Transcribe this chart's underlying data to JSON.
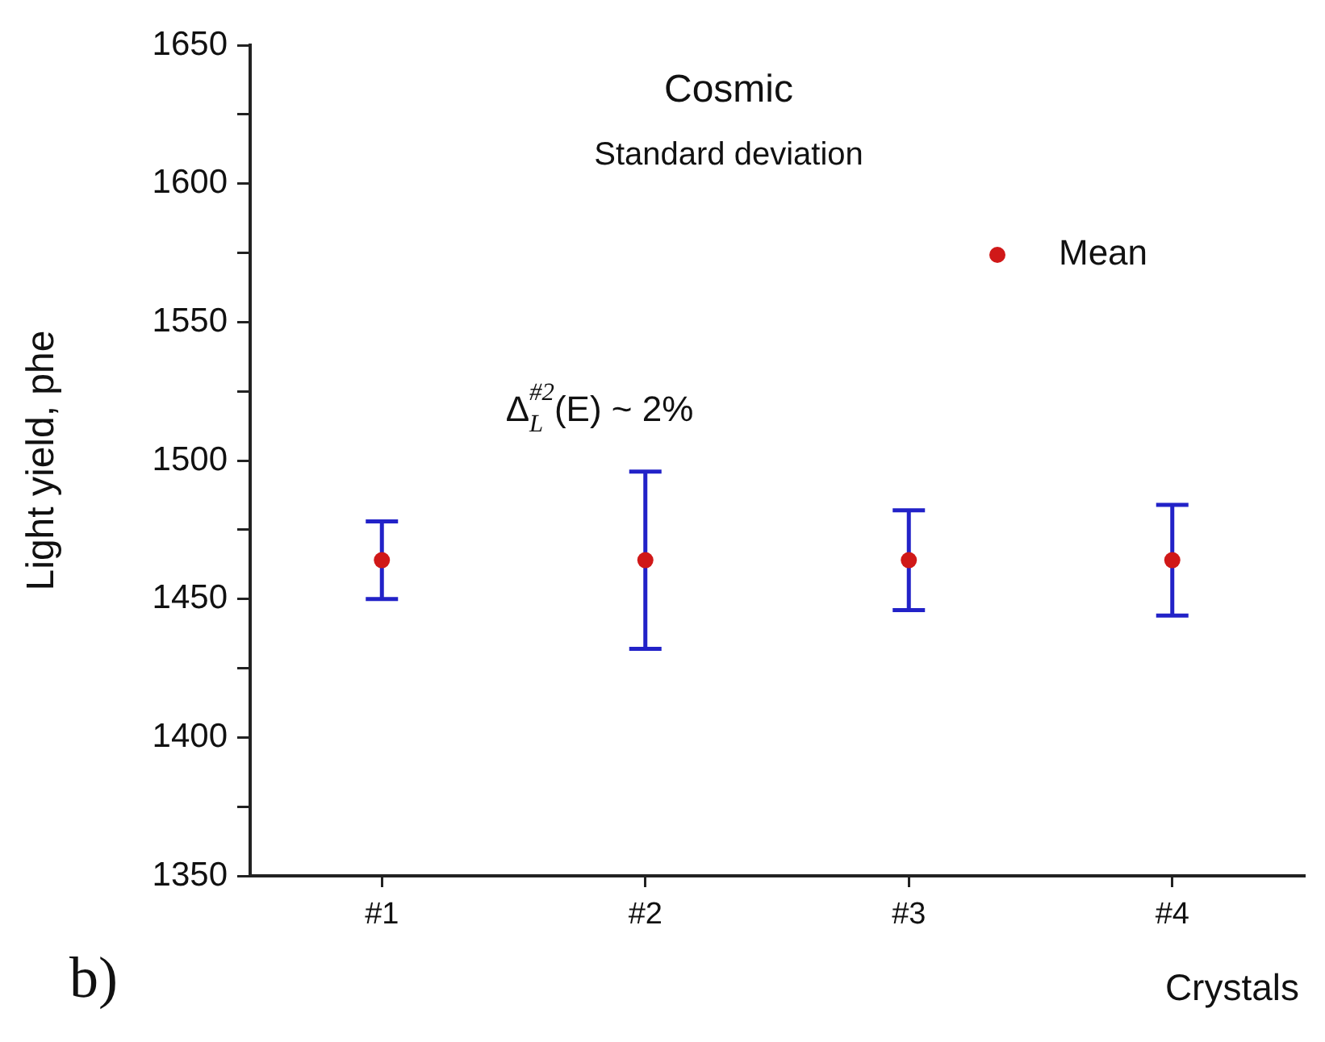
{
  "chart_data": {
    "type": "scatter",
    "title": "Cosmic",
    "subtitle": "Standard deviation",
    "xlabel": "Crystals",
    "ylabel": "Light yield, phe",
    "categories": [
      "#1",
      "#2",
      "#3",
      "#4"
    ],
    "series": [
      {
        "name": "Mean",
        "color": "#d01818",
        "values": [
          1464,
          1464,
          1464,
          1464
        ],
        "errors": [
          14,
          32,
          18,
          20
        ]
      }
    ],
    "ylim": [
      1350,
      1650
    ],
    "yticks": [
      1350,
      {
        "value": 1375,
        "label": null
      },
      1400,
      {
        "value": 1425,
        "label": null
      },
      1450,
      {
        "value": 1475,
        "label": null
      },
      1500,
      {
        "value": 1525,
        "label": null
      },
      1550,
      {
        "value": 1575,
        "label": null
      },
      1600,
      {
        "value": 1625,
        "label": null
      },
      1650
    ],
    "annotations": [
      "Δ$_{L}$$^{#2}$(E) ~ 2%",
      "b)"
    ],
    "marker": "circle",
    "legend": "top right",
    "grid": false
  }
}
